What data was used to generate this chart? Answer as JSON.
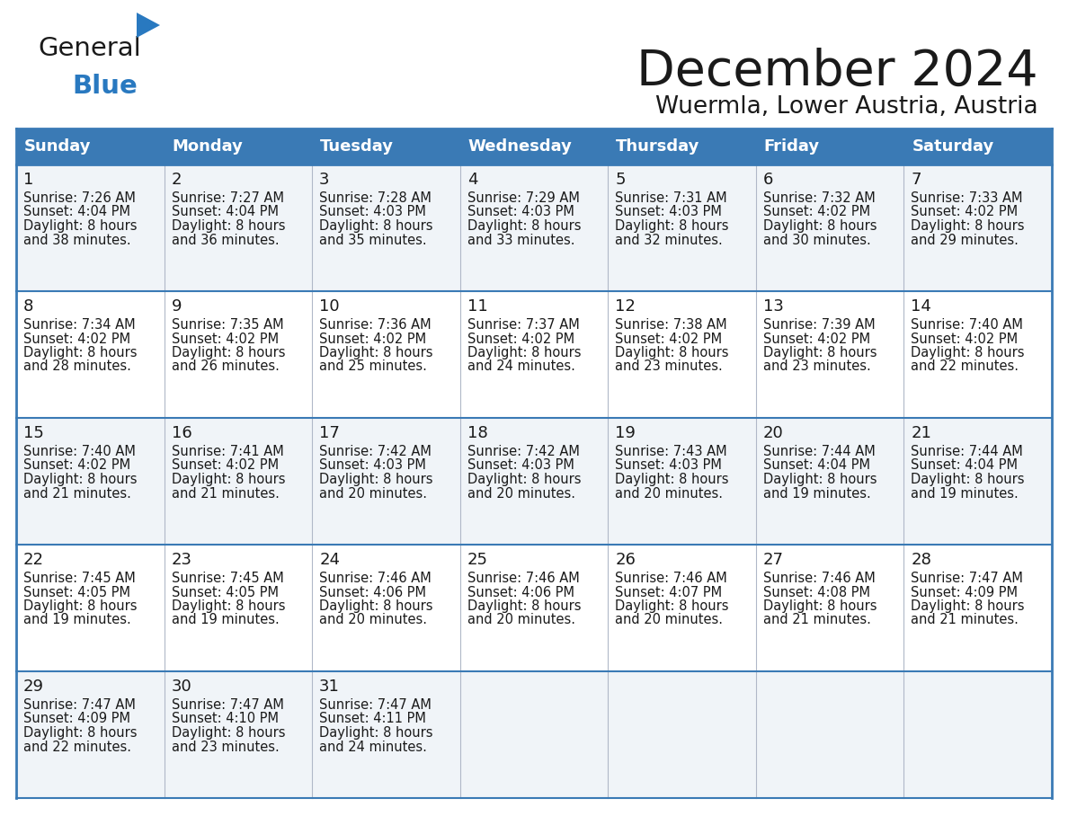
{
  "title": "December 2024",
  "subtitle": "Wuermla, Lower Austria, Austria",
  "header_color": "#3a7ab5",
  "header_text_color": "#ffffff",
  "cell_bg_even": "#f0f4f8",
  "cell_bg_odd": "#ffffff",
  "row_border_color": "#3a7ab5",
  "col_border_color": "#b0b8c8",
  "day_names": [
    "Sunday",
    "Monday",
    "Tuesday",
    "Wednesday",
    "Thursday",
    "Friday",
    "Saturday"
  ],
  "days": [
    {
      "day": 1,
      "col": 0,
      "row": 0,
      "sunrise": "7:26 AM",
      "sunset": "4:04 PM",
      "minutes": "38"
    },
    {
      "day": 2,
      "col": 1,
      "row": 0,
      "sunrise": "7:27 AM",
      "sunset": "4:04 PM",
      "minutes": "36"
    },
    {
      "day": 3,
      "col": 2,
      "row": 0,
      "sunrise": "7:28 AM",
      "sunset": "4:03 PM",
      "minutes": "35"
    },
    {
      "day": 4,
      "col": 3,
      "row": 0,
      "sunrise": "7:29 AM",
      "sunset": "4:03 PM",
      "minutes": "33"
    },
    {
      "day": 5,
      "col": 4,
      "row": 0,
      "sunrise": "7:31 AM",
      "sunset": "4:03 PM",
      "minutes": "32"
    },
    {
      "day": 6,
      "col": 5,
      "row": 0,
      "sunrise": "7:32 AM",
      "sunset": "4:02 PM",
      "minutes": "30"
    },
    {
      "day": 7,
      "col": 6,
      "row": 0,
      "sunrise": "7:33 AM",
      "sunset": "4:02 PM",
      "minutes": "29"
    },
    {
      "day": 8,
      "col": 0,
      "row": 1,
      "sunrise": "7:34 AM",
      "sunset": "4:02 PM",
      "minutes": "28"
    },
    {
      "day": 9,
      "col": 1,
      "row": 1,
      "sunrise": "7:35 AM",
      "sunset": "4:02 PM",
      "minutes": "26"
    },
    {
      "day": 10,
      "col": 2,
      "row": 1,
      "sunrise": "7:36 AM",
      "sunset": "4:02 PM",
      "minutes": "25"
    },
    {
      "day": 11,
      "col": 3,
      "row": 1,
      "sunrise": "7:37 AM",
      "sunset": "4:02 PM",
      "minutes": "24"
    },
    {
      "day": 12,
      "col": 4,
      "row": 1,
      "sunrise": "7:38 AM",
      "sunset": "4:02 PM",
      "minutes": "23"
    },
    {
      "day": 13,
      "col": 5,
      "row": 1,
      "sunrise": "7:39 AM",
      "sunset": "4:02 PM",
      "minutes": "23"
    },
    {
      "day": 14,
      "col": 6,
      "row": 1,
      "sunrise": "7:40 AM",
      "sunset": "4:02 PM",
      "minutes": "22"
    },
    {
      "day": 15,
      "col": 0,
      "row": 2,
      "sunrise": "7:40 AM",
      "sunset": "4:02 PM",
      "minutes": "21"
    },
    {
      "day": 16,
      "col": 1,
      "row": 2,
      "sunrise": "7:41 AM",
      "sunset": "4:02 PM",
      "minutes": "21"
    },
    {
      "day": 17,
      "col": 2,
      "row": 2,
      "sunrise": "7:42 AM",
      "sunset": "4:03 PM",
      "minutes": "20"
    },
    {
      "day": 18,
      "col": 3,
      "row": 2,
      "sunrise": "7:42 AM",
      "sunset": "4:03 PM",
      "minutes": "20"
    },
    {
      "day": 19,
      "col": 4,
      "row": 2,
      "sunrise": "7:43 AM",
      "sunset": "4:03 PM",
      "minutes": "20"
    },
    {
      "day": 20,
      "col": 5,
      "row": 2,
      "sunrise": "7:44 AM",
      "sunset": "4:04 PM",
      "minutes": "19"
    },
    {
      "day": 21,
      "col": 6,
      "row": 2,
      "sunrise": "7:44 AM",
      "sunset": "4:04 PM",
      "minutes": "19"
    },
    {
      "day": 22,
      "col": 0,
      "row": 3,
      "sunrise": "7:45 AM",
      "sunset": "4:05 PM",
      "minutes": "19"
    },
    {
      "day": 23,
      "col": 1,
      "row": 3,
      "sunrise": "7:45 AM",
      "sunset": "4:05 PM",
      "minutes": "19"
    },
    {
      "day": 24,
      "col": 2,
      "row": 3,
      "sunrise": "7:46 AM",
      "sunset": "4:06 PM",
      "minutes": "20"
    },
    {
      "day": 25,
      "col": 3,
      "row": 3,
      "sunrise": "7:46 AM",
      "sunset": "4:06 PM",
      "minutes": "20"
    },
    {
      "day": 26,
      "col": 4,
      "row": 3,
      "sunrise": "7:46 AM",
      "sunset": "4:07 PM",
      "minutes": "20"
    },
    {
      "day": 27,
      "col": 5,
      "row": 3,
      "sunrise": "7:46 AM",
      "sunset": "4:08 PM",
      "minutes": "21"
    },
    {
      "day": 28,
      "col": 6,
      "row": 3,
      "sunrise": "7:47 AM",
      "sunset": "4:09 PM",
      "minutes": "21"
    },
    {
      "day": 29,
      "col": 0,
      "row": 4,
      "sunrise": "7:47 AM",
      "sunset": "4:09 PM",
      "minutes": "22"
    },
    {
      "day": 30,
      "col": 1,
      "row": 4,
      "sunrise": "7:47 AM",
      "sunset": "4:10 PM",
      "minutes": "23"
    },
    {
      "day": 31,
      "col": 2,
      "row": 4,
      "sunrise": "7:47 AM",
      "sunset": "4:11 PM",
      "minutes": "24"
    }
  ],
  "logo_color_general": "#1a1a1a",
  "logo_color_blue": "#2979c0",
  "logo_triangle_color": "#2979c0",
  "title_color": "#1a1a1a",
  "text_color": "#1a1a1a"
}
